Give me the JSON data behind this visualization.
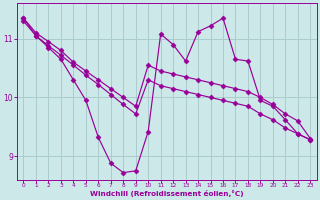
{
  "background_color": "#cce8e8",
  "line_color": "#990099",
  "grid_color": "#aacccc",
  "xlabel": "Windchill (Refroidissement éolien,°C)",
  "xlabel_color": "#990099",
  "tick_color": "#990099",
  "xlim": [
    -0.5,
    23.5
  ],
  "ylim": [
    8.6,
    11.6
  ],
  "yticks": [
    9,
    10,
    11
  ],
  "xticks": [
    0,
    1,
    2,
    3,
    4,
    5,
    6,
    7,
    8,
    9,
    10,
    11,
    12,
    13,
    14,
    15,
    16,
    17,
    18,
    19,
    20,
    21,
    22,
    23
  ],
  "series": [
    {
      "x": [
        0,
        1,
        2,
        3,
        4,
        5,
        6,
        7,
        8,
        9,
        10,
        11,
        12,
        13,
        14,
        15,
        16,
        17,
        18,
        19,
        20,
        21,
        22,
        23
      ],
      "y": [
        11.35,
        11.1,
        10.95,
        10.8,
        10.6,
        10.45,
        10.3,
        10.15,
        10.0,
        9.85,
        10.55,
        10.45,
        10.4,
        10.35,
        10.3,
        10.25,
        10.2,
        10.15,
        10.1,
        10.0,
        9.88,
        9.72,
        9.6,
        9.3
      ]
    },
    {
      "x": [
        0,
        1,
        2,
        3,
        4,
        5,
        6,
        7,
        8,
        9,
        10,
        11,
        12,
        13,
        14,
        15,
        16,
        17,
        18,
        19,
        20,
        21,
        22,
        23
      ],
      "y": [
        11.3,
        11.05,
        10.88,
        10.72,
        10.55,
        10.38,
        10.22,
        10.05,
        9.88,
        9.72,
        10.3,
        10.2,
        10.15,
        10.1,
        10.05,
        10.0,
        9.95,
        9.9,
        9.85,
        9.72,
        9.62,
        9.48,
        9.38,
        9.28
      ]
    },
    {
      "x": [
        0,
        1,
        2,
        3,
        4,
        5,
        6,
        7,
        8,
        9,
        10,
        11,
        12,
        13,
        14,
        15,
        16,
        17,
        18,
        19,
        20,
        21,
        22,
        23
      ],
      "y": [
        11.35,
        11.05,
        10.85,
        10.65,
        10.3,
        9.95,
        9.32,
        8.88,
        8.72,
        8.75,
        9.42,
        11.08,
        10.9,
        10.62,
        11.12,
        11.22,
        11.35,
        10.65,
        10.62,
        9.95,
        9.85,
        9.62,
        9.38,
        9.28
      ]
    }
  ],
  "marker": "D",
  "markersize": 2.5,
  "linewidth": 0.85
}
